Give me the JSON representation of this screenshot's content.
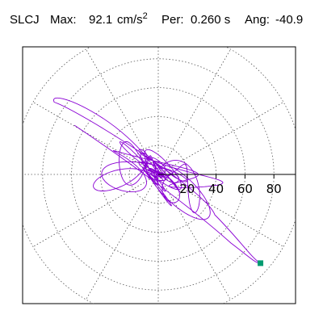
{
  "header": {
    "station": "SLCJ",
    "max_label": "Max:",
    "max_value": "92.1",
    "max_unit": "cm/s",
    "max_unit_exp": "2",
    "per_label": "Per:",
    "per_value": "0.260 s",
    "ang_label": "Ang:",
    "ang_value": "-40.9"
  },
  "chart_data": {
    "type": "polar-orbit",
    "station": "SLCJ",
    "max_acceleration": 92.1,
    "max_unit": "cm/s2",
    "period_s": 0.26,
    "angle_deg": -40.9,
    "radial_ticks": [
      20,
      40,
      60,
      80
    ],
    "radial_max": 100,
    "angular_grid_deg": [
      0,
      30,
      60,
      90,
      120,
      150,
      180,
      210,
      240,
      270,
      300,
      330
    ],
    "grid": true,
    "grid_style": "dotted",
    "trace_color": "#8a00d4",
    "marker_color": "#009b70",
    "end_marker": {
      "x": 70.7,
      "y": -61.4
    }
  }
}
